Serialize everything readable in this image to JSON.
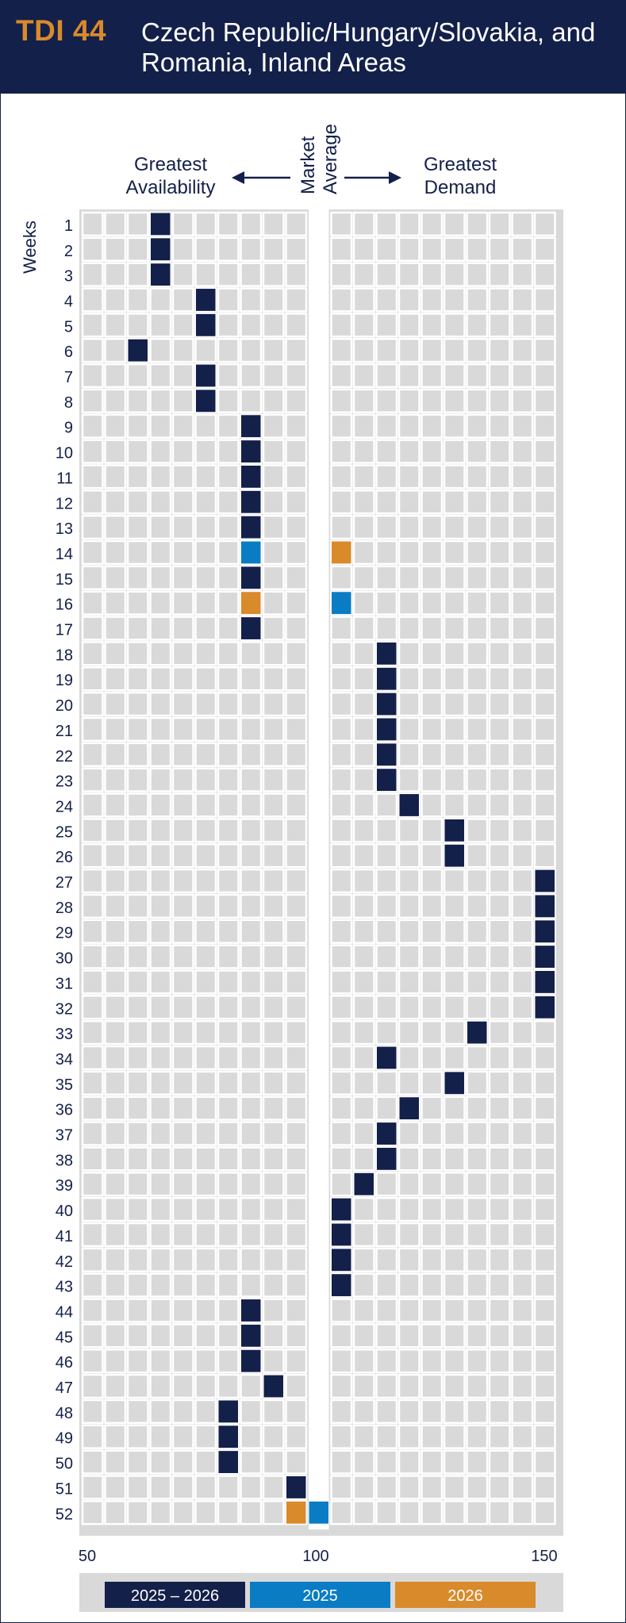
{
  "header": {
    "code": "TDI 44",
    "title": "Czech Republic/Hungary/Slovakia, and Romania, Inland Areas"
  },
  "chart_data": {
    "type": "heatmap",
    "title": "Czech Republic/Hungary/Slovakia, and Romania, Inland Areas",
    "ylabel": "Weeks",
    "labels": {
      "left": "Greatest Availability",
      "center": "Market Average",
      "right": "Greatest Demand"
    },
    "xlim": [
      50,
      150
    ],
    "x_ticks": [
      50,
      100,
      150
    ],
    "market_average": 100,
    "weeks": [
      1,
      2,
      3,
      4,
      5,
      6,
      7,
      8,
      9,
      10,
      11,
      12,
      13,
      14,
      15,
      16,
      17,
      18,
      19,
      20,
      21,
      22,
      23,
      24,
      25,
      26,
      27,
      28,
      29,
      30,
      31,
      32,
      33,
      34,
      35,
      36,
      37,
      38,
      39,
      40,
      41,
      42,
      43,
      44,
      45,
      46,
      47,
      48,
      49,
      50,
      51,
      52
    ],
    "series": [
      {
        "name": "2025 – 2026",
        "color": "#13204a",
        "values": [
          65,
          65,
          65,
          75,
          75,
          60,
          75,
          75,
          85,
          85,
          85,
          85,
          85,
          null,
          85,
          null,
          85,
          115,
          115,
          115,
          115,
          115,
          115,
          120,
          130,
          130,
          150,
          150,
          150,
          150,
          150,
          150,
          135,
          115,
          130,
          120,
          115,
          115,
          110,
          105,
          105,
          105,
          105,
          85,
          85,
          85,
          90,
          80,
          80,
          80,
          95,
          null
        ]
      },
      {
        "name": "2025",
        "color": "#0a7cc4",
        "values": [
          null,
          null,
          null,
          null,
          null,
          null,
          null,
          null,
          null,
          null,
          null,
          null,
          null,
          85,
          null,
          105,
          null,
          null,
          null,
          null,
          null,
          null,
          null,
          null,
          null,
          null,
          null,
          null,
          null,
          null,
          null,
          null,
          null,
          null,
          null,
          null,
          null,
          null,
          null,
          null,
          null,
          null,
          null,
          null,
          null,
          null,
          null,
          null,
          null,
          null,
          null,
          100
        ]
      },
      {
        "name": "2026",
        "color": "#d98a2b",
        "values": [
          null,
          null,
          null,
          null,
          null,
          null,
          null,
          null,
          null,
          null,
          null,
          null,
          null,
          105,
          null,
          85,
          null,
          null,
          null,
          null,
          null,
          null,
          null,
          null,
          null,
          null,
          null,
          null,
          null,
          null,
          null,
          null,
          null,
          null,
          null,
          null,
          null,
          null,
          null,
          null,
          null,
          null,
          null,
          null,
          null,
          null,
          null,
          null,
          null,
          null,
          null,
          95
        ]
      }
    ],
    "legend": [
      "2025 – 2026",
      "2025",
      "2026"
    ],
    "legend_position": "bottom"
  }
}
